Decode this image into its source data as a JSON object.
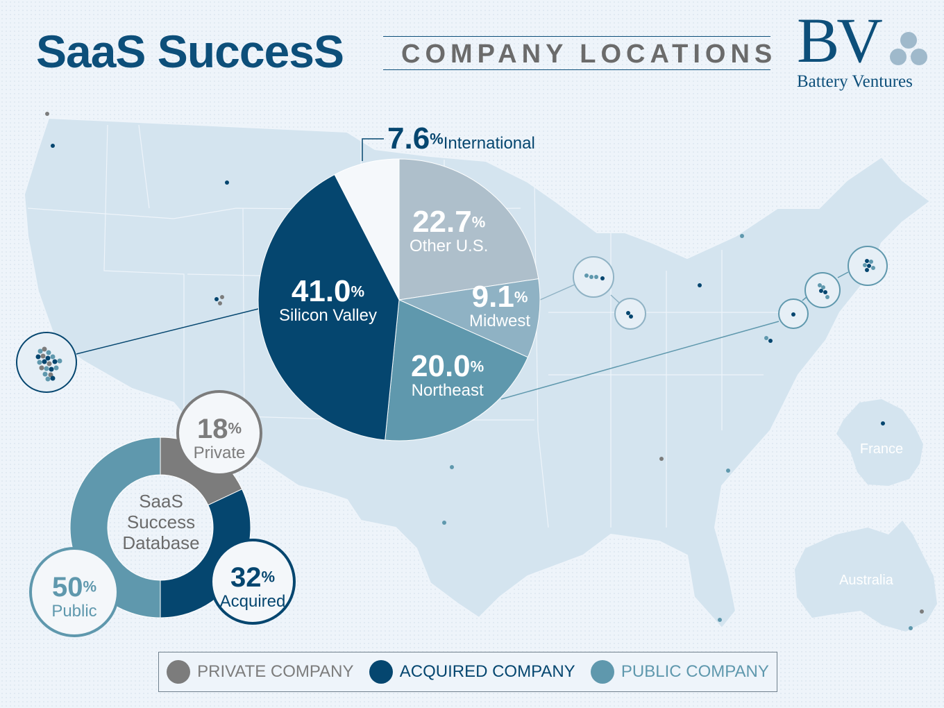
{
  "header": {
    "title": "SaaS SuccesS",
    "subtitle": "COMPANY LOCATIONS"
  },
  "logo": {
    "mark": "BV",
    "name": "Battery Ventures"
  },
  "map_labels": {
    "france": "France",
    "australia": "Australia"
  },
  "colors": {
    "private": "#7c7c7c",
    "acquired": "#05466f",
    "public": "#5f98ad",
    "other_us": "#aebfcb",
    "midwest": "#8fb2c4",
    "international": "#f5f8fb",
    "map_land": "#d4e4ef"
  },
  "chart_data": [
    {
      "type": "pie",
      "categories": [
        "Other U.S.",
        "Midwest",
        "Northeast",
        "Silicon Valley",
        "International"
      ],
      "values": [
        22.7,
        9.1,
        20.0,
        41.0,
        7.6
      ],
      "value_labels": [
        "22.7",
        "9.1",
        "20.0",
        "41.0",
        "7.6"
      ],
      "unit": "%"
    },
    {
      "type": "pie",
      "center_label": [
        "SaaS",
        "Success",
        "Database"
      ],
      "categories": [
        "Private",
        "Acquired",
        "Public"
      ],
      "values": [
        18,
        32,
        50
      ],
      "value_labels": [
        "18",
        "32",
        "50"
      ],
      "unit": "%"
    }
  ],
  "legend": [
    {
      "label": "PRIVATE COMPANY",
      "color": "#7c7c7c"
    },
    {
      "label": "ACQUIRED COMPANY",
      "color": "#05466f"
    },
    {
      "label": "PUBLIC COMPANY",
      "color": "#5f98ad"
    }
  ]
}
